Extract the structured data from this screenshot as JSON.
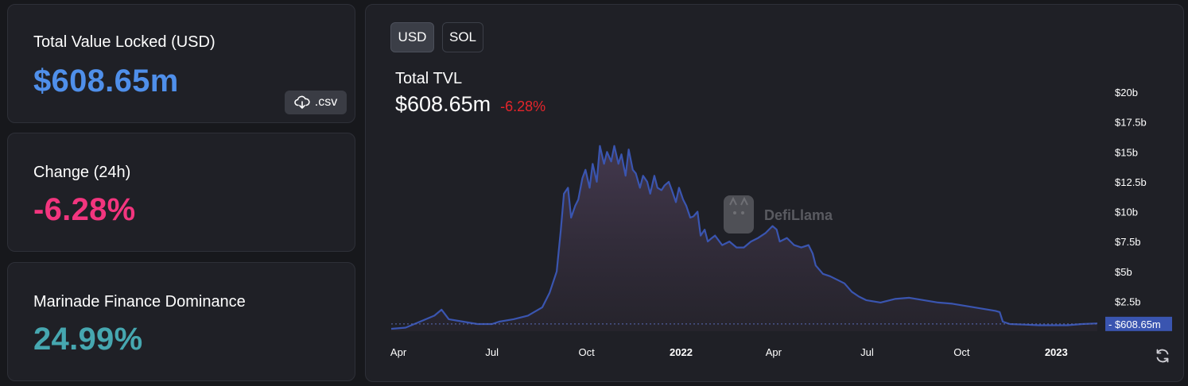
{
  "stats": {
    "tvl_label": "Total Value Locked (USD)",
    "tvl_value": "$608.65m",
    "csv_label": ".csv",
    "change_label": "Change (24h)",
    "change_value": "-6.28%",
    "dominance_label": "Marinade Finance Dominance",
    "dominance_value": "24.99%"
  },
  "colors": {
    "tvl_value": "#4f8fea",
    "change_value": "#f2357e",
    "dominance_value": "#46a7b0",
    "line": "#3a55b0",
    "negative": "#e5252b"
  },
  "toggles": [
    "USD",
    "SOL"
  ],
  "watermark": "DefiLlama",
  "chart_data": {
    "type": "area",
    "title": "Total TVL",
    "current_value": "$608.65m",
    "current_change": "-6.28%",
    "ylim": [
      0,
      20
    ],
    "y_ticks": [
      2.5,
      5,
      7.5,
      10,
      12.5,
      15,
      17.5,
      20
    ],
    "y_tick_labels": [
      "$2.5b",
      "$5b",
      "$7.5b",
      "$10b",
      "$12.5b",
      "$15b",
      "$17.5b",
      "$20b"
    ],
    "x_ticks": [
      {
        "label": "Apr",
        "date": "2021-04-01",
        "bold": false
      },
      {
        "label": "Jul",
        "date": "2021-07-01",
        "bold": false
      },
      {
        "label": "Oct",
        "date": "2021-10-01",
        "bold": false
      },
      {
        "label": "2022",
        "date": "2022-01-01",
        "bold": true
      },
      {
        "label": "Apr",
        "date": "2022-04-01",
        "bold": false
      },
      {
        "label": "Jul",
        "date": "2022-07-01",
        "bold": false
      },
      {
        "label": "Oct",
        "date": "2022-10-01",
        "bold": false
      },
      {
        "label": "2023",
        "date": "2023-01-01",
        "bold": true
      }
    ],
    "xlim": [
      "2021-03-25",
      "2023-02-10"
    ],
    "current_marker": {
      "value": 0.60865,
      "label": "$608.65m"
    },
    "series": [
      {
        "x": [
          "2021-03-25",
          "2021-04-08",
          "2021-04-22",
          "2021-05-06",
          "2021-05-13",
          "2021-05-20",
          "2021-06-03",
          "2021-06-17",
          "2021-07-01",
          "2021-07-08",
          "2021-07-22",
          "2021-08-05",
          "2021-08-19",
          "2021-08-26",
          "2021-09-02",
          "2021-09-06",
          "2021-09-09",
          "2021-09-13",
          "2021-09-16",
          "2021-09-20",
          "2021-09-23",
          "2021-09-27",
          "2021-09-30",
          "2021-10-04",
          "2021-10-07",
          "2021-10-11",
          "2021-10-14",
          "2021-10-18",
          "2021-10-21",
          "2021-10-25",
          "2021-10-28",
          "2021-11-01",
          "2021-11-04",
          "2021-11-08",
          "2021-11-11",
          "2021-11-15",
          "2021-11-18",
          "2021-11-22",
          "2021-11-25",
          "2021-11-29",
          "2021-12-02",
          "2021-12-06",
          "2021-12-09",
          "2021-12-13",
          "2021-12-16",
          "2021-12-20",
          "2021-12-23",
          "2021-12-27",
          "2021-12-30",
          "2022-01-03",
          "2022-01-06",
          "2022-01-10",
          "2022-01-13",
          "2022-01-17",
          "2022-01-20",
          "2022-01-24",
          "2022-01-27",
          "2022-01-31",
          "2022-02-03",
          "2022-02-10",
          "2022-02-17",
          "2022-02-24",
          "2022-03-03",
          "2022-03-10",
          "2022-03-17",
          "2022-03-24",
          "2022-03-31",
          "2022-04-04",
          "2022-04-07",
          "2022-04-14",
          "2022-04-21",
          "2022-04-28",
          "2022-05-05",
          "2022-05-09",
          "2022-05-12",
          "2022-05-19",
          "2022-05-26",
          "2022-06-02",
          "2022-06-09",
          "2022-06-13",
          "2022-06-16",
          "2022-06-23",
          "2022-06-30",
          "2022-07-14",
          "2022-07-28",
          "2022-08-11",
          "2022-08-25",
          "2022-09-08",
          "2022-09-22",
          "2022-10-06",
          "2022-10-20",
          "2022-11-03",
          "2022-11-07",
          "2022-11-10",
          "2022-11-17",
          "2022-12-01",
          "2022-12-15",
          "2022-12-29",
          "2023-01-12",
          "2023-01-26",
          "2023-02-10"
        ],
        "values": [
          0.2,
          0.3,
          0.8,
          1.3,
          1.8,
          1.0,
          0.8,
          0.6,
          0.6,
          0.8,
          1.0,
          1.3,
          2.0,
          3.2,
          5.0,
          8.5,
          11.5,
          12.0,
          9.5,
          10.5,
          11.0,
          12.8,
          13.5,
          12.0,
          14.0,
          12.5,
          15.5,
          14.0,
          15.0,
          14.2,
          15.5,
          14.0,
          14.8,
          13.0,
          15.2,
          13.5,
          13.2,
          12.0,
          13.0,
          12.5,
          11.5,
          13.0,
          12.0,
          11.8,
          12.2,
          12.5,
          11.8,
          10.8,
          12.0,
          11.0,
          10.5,
          9.5,
          9.6,
          10.0,
          8.0,
          8.5,
          7.5,
          7.8,
          8.0,
          7.2,
          7.5,
          7.0,
          7.0,
          7.5,
          7.8,
          8.2,
          8.8,
          8.5,
          7.5,
          7.8,
          7.2,
          7.0,
          7.2,
          6.5,
          5.5,
          4.8,
          4.6,
          4.3,
          4.0,
          3.6,
          3.3,
          2.9,
          2.6,
          2.4,
          2.7,
          2.8,
          2.6,
          2.4,
          2.3,
          2.1,
          1.9,
          1.7,
          1.6,
          0.8,
          0.6,
          0.55,
          0.5,
          0.5,
          0.5,
          0.6,
          0.65
        ]
      }
    ]
  }
}
